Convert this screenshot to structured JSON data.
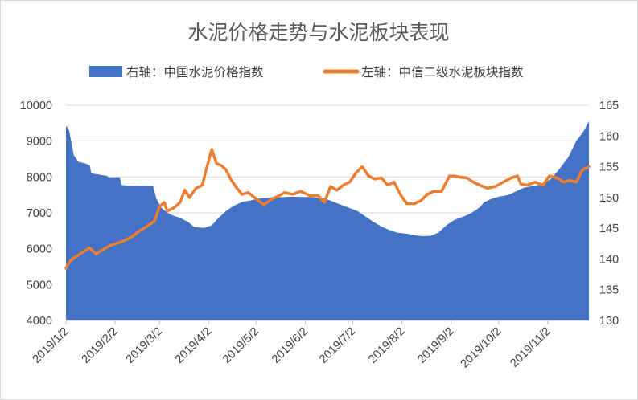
{
  "chart_data": {
    "type": "area+line",
    "title": "水泥价格走势与水泥板块表现",
    "x_tick_labels": [
      "2019/1/2",
      "2019/2/2",
      "2019/3/2",
      "2019/4/2",
      "2019/5/2",
      "2019/6/2",
      "2019/7/2",
      "2019/8/2",
      "2019/9/2",
      "2019/10/2",
      "2019/11/2"
    ],
    "x_range": [
      "2019-01-02",
      "2019-11-28"
    ],
    "axes": {
      "left": {
        "min": 4000,
        "max": 10000,
        "step": 1000,
        "ticks": [
          "4000",
          "5000",
          "6000",
          "7000",
          "8000",
          "9000",
          "10000"
        ],
        "grid": true
      },
      "right": {
        "min": 130,
        "max": 165,
        "step": 5,
        "ticks": [
          "130",
          "135",
          "140",
          "145",
          "150",
          "155",
          "160",
          "165"
        ],
        "grid": false
      }
    },
    "legend": {
      "position": "top"
    },
    "series": [
      {
        "name": "右轴：中国水泥价格指数",
        "type": "area",
        "color": "#4472c4",
        "points": [
          [
            "2019-01-02",
            9430
          ],
          [
            "2019-01-04",
            9300
          ],
          [
            "2019-01-07",
            8600
          ],
          [
            "2019-01-10",
            8420
          ],
          [
            "2019-01-14",
            8380
          ],
          [
            "2019-01-17",
            8320
          ],
          [
            "2019-01-18",
            8100
          ],
          [
            "2019-01-24",
            8060
          ],
          [
            "2019-01-28",
            8030
          ],
          [
            "2019-01-29",
            7990
          ],
          [
            "2019-02-05",
            7990
          ],
          [
            "2019-02-06",
            7780
          ],
          [
            "2019-02-10",
            7760
          ],
          [
            "2019-02-20",
            7750
          ],
          [
            "2019-02-26",
            7750
          ],
          [
            "2019-02-28",
            7400
          ],
          [
            "2019-03-03",
            7150
          ],
          [
            "2019-03-07",
            7000
          ],
          [
            "2019-03-11",
            6920
          ],
          [
            "2019-03-15",
            6860
          ],
          [
            "2019-03-20",
            6750
          ],
          [
            "2019-03-24",
            6600
          ],
          [
            "2019-03-30",
            6580
          ],
          [
            "2019-04-04",
            6650
          ],
          [
            "2019-04-08",
            6850
          ],
          [
            "2019-04-13",
            7050
          ],
          [
            "2019-04-18",
            7200
          ],
          [
            "2019-04-23",
            7300
          ],
          [
            "2019-04-28",
            7340
          ],
          [
            "2019-05-04",
            7400
          ],
          [
            "2019-05-10",
            7420
          ],
          [
            "2019-05-15",
            7430
          ],
          [
            "2019-05-20",
            7440
          ],
          [
            "2019-05-25",
            7450
          ],
          [
            "2019-05-30",
            7440
          ],
          [
            "2019-06-05",
            7440
          ],
          [
            "2019-06-10",
            7420
          ],
          [
            "2019-06-14",
            7400
          ],
          [
            "2019-06-18",
            7340
          ],
          [
            "2019-06-23",
            7250
          ],
          [
            "2019-06-29",
            7150
          ],
          [
            "2019-07-05",
            7050
          ],
          [
            "2019-07-10",
            6900
          ],
          [
            "2019-07-15",
            6750
          ],
          [
            "2019-07-20",
            6620
          ],
          [
            "2019-07-25",
            6520
          ],
          [
            "2019-07-30",
            6450
          ],
          [
            "2019-08-05",
            6420
          ],
          [
            "2019-08-10",
            6380
          ],
          [
            "2019-08-15",
            6350
          ],
          [
            "2019-08-20",
            6360
          ],
          [
            "2019-08-25",
            6450
          ],
          [
            "2019-08-30",
            6650
          ],
          [
            "2019-09-04",
            6800
          ],
          [
            "2019-09-10",
            6900
          ],
          [
            "2019-09-15",
            7000
          ],
          [
            "2019-09-20",
            7150
          ],
          [
            "2019-09-23",
            7300
          ],
          [
            "2019-09-27",
            7380
          ],
          [
            "2019-10-02",
            7450
          ],
          [
            "2019-10-08",
            7500
          ],
          [
            "2019-10-13",
            7600
          ],
          [
            "2019-10-18",
            7700
          ],
          [
            "2019-10-24",
            7750
          ],
          [
            "2019-10-30",
            7800
          ],
          [
            "2019-11-04",
            7950
          ],
          [
            "2019-11-09",
            8200
          ],
          [
            "2019-11-15",
            8550
          ],
          [
            "2019-11-20",
            9000
          ],
          [
            "2019-11-25",
            9300
          ],
          [
            "2019-11-28",
            9560
          ]
        ]
      },
      {
        "name": "左轴：中信二级水泥板块指数",
        "type": "line",
        "color": "#ed7d31",
        "points": [
          [
            "2019-01-02",
            138.5
          ],
          [
            "2019-01-05",
            139.8
          ],
          [
            "2019-01-09",
            140.5
          ],
          [
            "2019-01-13",
            141.2
          ],
          [
            "2019-01-17",
            141.8
          ],
          [
            "2019-01-21",
            140.8
          ],
          [
            "2019-01-25",
            141.5
          ],
          [
            "2019-01-30",
            142.2
          ],
          [
            "2019-02-06",
            142.8
          ],
          [
            "2019-02-12",
            143.5
          ],
          [
            "2019-02-17",
            144.5
          ],
          [
            "2019-02-22",
            145.3
          ],
          [
            "2019-02-27",
            146.2
          ],
          [
            "2019-03-02",
            148.5
          ],
          [
            "2019-03-05",
            149.2
          ],
          [
            "2019-03-07",
            147.8
          ],
          [
            "2019-03-11",
            148.3
          ],
          [
            "2019-03-15",
            149.2
          ],
          [
            "2019-03-18",
            151.2
          ],
          [
            "2019-03-21",
            150.0
          ],
          [
            "2019-03-25",
            151.5
          ],
          [
            "2019-03-29",
            152.0
          ],
          [
            "2019-04-01",
            155.0
          ],
          [
            "2019-04-04",
            157.8
          ],
          [
            "2019-04-07",
            155.5
          ],
          [
            "2019-04-10",
            155.2
          ],
          [
            "2019-04-13",
            154.5
          ],
          [
            "2019-04-16",
            153.0
          ],
          [
            "2019-04-19",
            151.8
          ],
          [
            "2019-04-23",
            150.5
          ],
          [
            "2019-04-27",
            150.8
          ],
          [
            "2019-05-02",
            149.8
          ],
          [
            "2019-05-07",
            148.8
          ],
          [
            "2019-05-12",
            149.8
          ],
          [
            "2019-05-16",
            150.2
          ],
          [
            "2019-05-20",
            150.8
          ],
          [
            "2019-05-25",
            150.5
          ],
          [
            "2019-05-30",
            151.0
          ],
          [
            "2019-06-05",
            150.3
          ],
          [
            "2019-06-10",
            150.3
          ],
          [
            "2019-06-14",
            149.2
          ],
          [
            "2019-06-18",
            151.8
          ],
          [
            "2019-06-22",
            151.2
          ],
          [
            "2019-06-26",
            152.0
          ],
          [
            "2019-06-30",
            152.5
          ],
          [
            "2019-07-04",
            154.0
          ],
          [
            "2019-07-08",
            155.0
          ],
          [
            "2019-07-12",
            153.5
          ],
          [
            "2019-07-16",
            153.0
          ],
          [
            "2019-07-20",
            153.2
          ],
          [
            "2019-07-24",
            152.0
          ],
          [
            "2019-07-28",
            152.5
          ],
          [
            "2019-08-01",
            150.5
          ],
          [
            "2019-08-05",
            149.0
          ],
          [
            "2019-08-10",
            149.0
          ],
          [
            "2019-08-14",
            149.5
          ],
          [
            "2019-08-18",
            150.5
          ],
          [
            "2019-08-22",
            151.0
          ],
          [
            "2019-08-27",
            151.0
          ],
          [
            "2019-09-01",
            153.5
          ],
          [
            "2019-09-04",
            153.5
          ],
          [
            "2019-09-08",
            153.3
          ],
          [
            "2019-09-12",
            153.2
          ],
          [
            "2019-09-16",
            152.5
          ],
          [
            "2019-09-20",
            152.0
          ],
          [
            "2019-09-25",
            151.5
          ],
          [
            "2019-09-30",
            151.8
          ],
          [
            "2019-10-05",
            152.5
          ],
          [
            "2019-10-10",
            153.2
          ],
          [
            "2019-10-14",
            153.5
          ],
          [
            "2019-10-16",
            152.2
          ],
          [
            "2019-10-20",
            152.0
          ],
          [
            "2019-10-25",
            152.5
          ],
          [
            "2019-10-30",
            152.0
          ],
          [
            "2019-11-03",
            153.5
          ],
          [
            "2019-11-08",
            153.2
          ],
          [
            "2019-11-12",
            152.5
          ],
          [
            "2019-11-16",
            152.8
          ],
          [
            "2019-11-20",
            152.5
          ],
          [
            "2019-11-24",
            154.5
          ],
          [
            "2019-11-28",
            155.0
          ]
        ]
      }
    ]
  }
}
